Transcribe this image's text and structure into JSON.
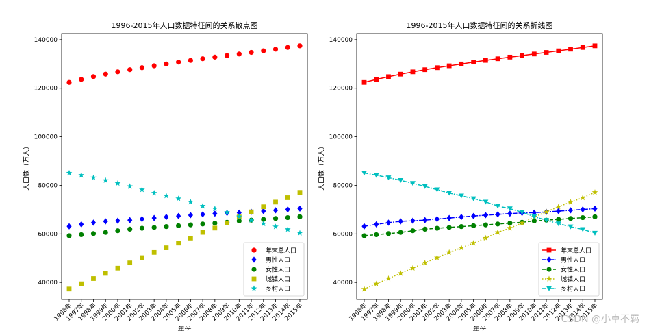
{
  "chart_data": [
    {
      "type": "scatter",
      "title": "1996-2015年人口数据特征间的关系散点图",
      "xlabel": "年份",
      "ylabel": "人口数（万人）",
      "ylim": [
        33000,
        142500
      ],
      "yticks": [
        40000,
        60000,
        80000,
        100000,
        120000,
        140000
      ],
      "categories": [
        "1996年",
        "1997年",
        "1998年",
        "1999年",
        "2000年",
        "2001年",
        "2002年",
        "2003年",
        "2004年",
        "2005年",
        "2006年",
        "2007年",
        "2008年",
        "2009年",
        "2010年",
        "2011年",
        "2012年",
        "2013年",
        "2014年",
        "2015年"
      ],
      "legend_position": "lower-right",
      "series": [
        {
          "name": "年末总人口",
          "color": "#ff0000",
          "marker": "circle",
          "values": [
            122389,
            123626,
            124761,
            125786,
            126743,
            127627,
            128453,
            129227,
            129988,
            130756,
            131448,
            132129,
            132802,
            133450,
            134091,
            134735,
            135404,
            136072,
            136782,
            137462
          ]
        },
        {
          "name": "男性人口",
          "color": "#0000ff",
          "marker": "diamond",
          "values": [
            63131,
            63940,
            64634,
            65181,
            65437,
            65672,
            66115,
            66556,
            66976,
            67375,
            67728,
            68048,
            68357,
            68647,
            68748,
            69068,
            69395,
            69728,
            70079,
            70414
          ]
        },
        {
          "name": "女性人口",
          "color": "#008000",
          "marker": "circle",
          "values": [
            59258,
            59686,
            60127,
            60605,
            61306,
            61955,
            62338,
            62671,
            63012,
            63381,
            63720,
            64081,
            64445,
            64803,
            65343,
            65667,
            66009,
            66344,
            66703,
            67048
          ]
        },
        {
          "name": "城镇人口",
          "color": "#bfbf00",
          "marker": "square",
          "values": [
            37304,
            39449,
            41608,
            43748,
            45906,
            48064,
            50212,
            52376,
            54283,
            56212,
            58288,
            60633,
            62403,
            64512,
            66978,
            69079,
            71182,
            73111,
            74916,
            77116
          ]
        },
        {
          "name": "乡村人口",
          "color": "#00bfbf",
          "marker": "star",
          "values": [
            85085,
            84177,
            83153,
            82038,
            80837,
            79563,
            78241,
            76851,
            75705,
            74544,
            73160,
            71496,
            70399,
            68938,
            67113,
            65656,
            64222,
            62961,
            61866,
            60346
          ]
        }
      ]
    },
    {
      "type": "line",
      "title": "1996-2015年人口数据特征间的关系折线图",
      "xlabel": "年份",
      "ylabel": "人口数（万人）",
      "ylim": [
        33000,
        142500
      ],
      "yticks": [
        40000,
        60000,
        80000,
        100000,
        120000,
        140000
      ],
      "categories": [
        "1996年",
        "1997年",
        "1998年",
        "1999年",
        "2000年",
        "2001年",
        "2002年",
        "2003年",
        "2004年",
        "2005年",
        "2006年",
        "2007年",
        "2008年",
        "2009年",
        "2010年",
        "2011年",
        "2012年",
        "2013年",
        "2014年",
        "2015年"
      ],
      "legend_position": "lower-right",
      "series": [
        {
          "name": "年末总人口",
          "color": "#ff0000",
          "marker": "square",
          "linestyle": "solid",
          "values": [
            122389,
            123626,
            124761,
            125786,
            126743,
            127627,
            128453,
            129227,
            129988,
            130756,
            131448,
            132129,
            132802,
            133450,
            134091,
            134735,
            135404,
            136072,
            136782,
            137462
          ]
        },
        {
          "name": "男性人口",
          "color": "#0000ff",
          "marker": "diamond",
          "linestyle": "dashdot",
          "values": [
            63131,
            63940,
            64634,
            65181,
            65437,
            65672,
            66115,
            66556,
            66976,
            67375,
            67728,
            68048,
            68357,
            68647,
            68748,
            69068,
            69395,
            69728,
            70079,
            70414
          ]
        },
        {
          "name": "女性人口",
          "color": "#008000",
          "marker": "circle",
          "linestyle": "dashed",
          "values": [
            59258,
            59686,
            60127,
            60605,
            61306,
            61955,
            62338,
            62671,
            63012,
            63381,
            63720,
            64081,
            64445,
            64803,
            65343,
            65667,
            66009,
            66344,
            66703,
            67048
          ]
        },
        {
          "name": "城镇人口",
          "color": "#bfbf00",
          "marker": "star",
          "linestyle": "dotted",
          "values": [
            37304,
            39449,
            41608,
            43748,
            45906,
            48064,
            50212,
            52376,
            54283,
            56212,
            58288,
            60633,
            62403,
            64512,
            66978,
            69079,
            71182,
            73111,
            74916,
            77116
          ]
        },
        {
          "name": "乡村人口",
          "color": "#00bfbf",
          "marker": "triangle-down",
          "linestyle": "dashdot",
          "values": [
            85085,
            84177,
            83153,
            82038,
            80837,
            79563,
            78241,
            76851,
            75705,
            74544,
            73160,
            71496,
            70399,
            68938,
            67113,
            65656,
            64222,
            62961,
            61866,
            60346
          ]
        }
      ]
    }
  ],
  "watermark": "CSDN @小卓不羁"
}
